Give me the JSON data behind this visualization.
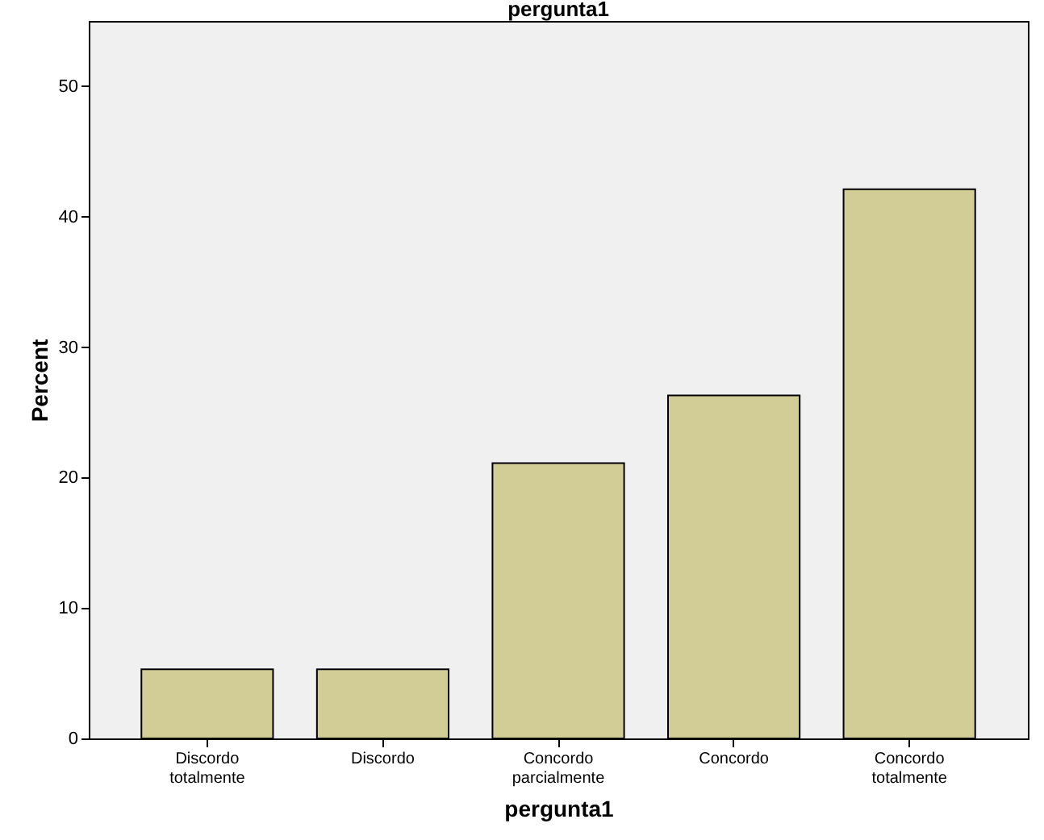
{
  "chart_data": {
    "type": "bar",
    "title": "pergunta1",
    "xlabel": "pergunta1",
    "ylabel": "Percent",
    "categories": [
      "Discordo totalmente",
      "Discordo",
      "Concordo parcialmente",
      "Concordo",
      "Concordo totalmente"
    ],
    "values": [
      5.3,
      5.3,
      21.1,
      26.3,
      42.1
    ],
    "color": "#d2cc96",
    "ylim": [
      0,
      55
    ],
    "yticks": [
      0,
      10,
      20,
      30,
      40,
      50
    ],
    "grid": false
  }
}
